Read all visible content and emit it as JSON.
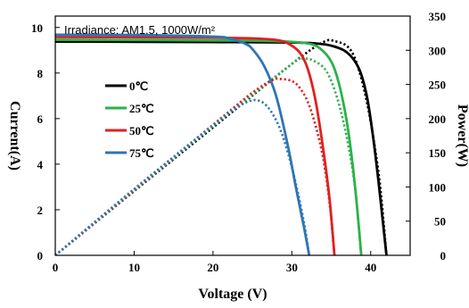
{
  "chart_data": {
    "type": "line",
    "annotation": "Irradiance: AM1.5,  1000W/m²",
    "xlabel": "Voltage (V)",
    "ylabel_left": "Current(A)",
    "ylabel_right": "Power(W)",
    "xlim": [
      0,
      45
    ],
    "ylim_left": [
      0,
      10.5
    ],
    "ylim_right": [
      0,
      350
    ],
    "x_ticks": [
      0,
      10,
      20,
      30,
      40
    ],
    "y_left_ticks": [
      0,
      2,
      4,
      6,
      8,
      10
    ],
    "y_right_ticks": [
      0,
      50,
      100,
      150,
      200,
      250,
      300,
      350
    ],
    "grid": false,
    "legend_position": "left-center",
    "series": [
      {
        "name": "0℃",
        "color": "#000000",
        "iv": {
          "x": [
            0,
            10,
            20,
            30,
            33,
            35,
            37,
            38.5,
            39.5,
            40.3,
            41,
            41.5,
            42
          ],
          "y": [
            9.38,
            9.37,
            9.36,
            9.34,
            9.3,
            9.2,
            8.9,
            8.2,
            7.0,
            5.2,
            3.2,
            1.6,
            0
          ]
        },
        "pv": {
          "x": [
            0,
            10,
            20,
            30,
            34,
            35.5,
            37,
            38,
            39,
            40,
            41,
            41.5,
            42
          ],
          "y": [
            0,
            94,
            187,
            280,
            312,
            313,
            306,
            288,
            250,
            195,
            120,
            65,
            0
          ]
        }
      },
      {
        "name": "25℃",
        "color": "#2bb24c",
        "iv": {
          "x": [
            0,
            10,
            20,
            25,
            30,
            32,
            33.5,
            35,
            36,
            37,
            37.7,
            38.3,
            38.8
          ],
          "y": [
            9.46,
            9.45,
            9.43,
            9.42,
            9.37,
            9.3,
            9.1,
            8.5,
            7.5,
            5.8,
            4.0,
            2.0,
            0
          ]
        },
        "pv": {
          "x": [
            0,
            10,
            20,
            30,
            31.5,
            32.5,
            34,
            35,
            36,
            37,
            38,
            38.8
          ],
          "y": [
            0,
            95,
            189,
            280,
            287,
            286,
            275,
            255,
            220,
            170,
            100,
            0
          ]
        }
      },
      {
        "name": "50℃",
        "color": "#e02020",
        "iv": {
          "x": [
            0,
            10,
            20,
            25,
            28,
            29.5,
            31,
            32,
            33,
            34,
            34.8,
            35.4
          ],
          "y": [
            9.58,
            9.57,
            9.55,
            9.52,
            9.45,
            9.3,
            8.9,
            8.2,
            6.8,
            4.6,
            2.4,
            0
          ]
        },
        "pv": {
          "x": [
            0,
            10,
            20,
            25,
            27.5,
            28.5,
            30,
            31,
            32,
            33,
            34,
            34.8,
            35.4
          ],
          "y": [
            0,
            96,
            191,
            238,
            256,
            258,
            255,
            245,
            225,
            190,
            140,
            75,
            0
          ]
        }
      },
      {
        "name": "75℃",
        "color": "#2e75b6",
        "iv": {
          "x": [
            0,
            10,
            20,
            22,
            24,
            25,
            26.5,
            28,
            29.5,
            30.5,
            31.5,
            32.2
          ],
          "y": [
            9.68,
            9.67,
            9.6,
            9.52,
            9.3,
            9.05,
            8.3,
            7.0,
            4.8,
            3.0,
            1.3,
            0
          ]
        },
        "pv": {
          "x": [
            0,
            10,
            20,
            23,
            24.5,
            25.5,
            26.5,
            27.5,
            28.5,
            29.5,
            30.5,
            31.5,
            32.2
          ],
          "y": [
            0,
            97,
            190,
            216,
            225,
            227,
            222,
            208,
            185,
            150,
            105,
            50,
            0
          ]
        }
      }
    ]
  }
}
